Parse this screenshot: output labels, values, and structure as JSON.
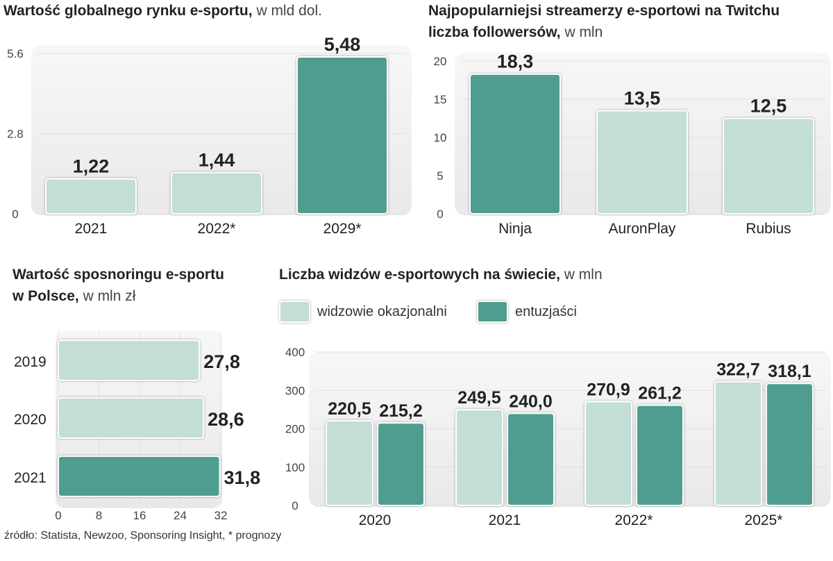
{
  "colors": {
    "light": "#c3ddd7",
    "dark": "#4f9d90",
    "panel": "#efefef"
  },
  "chart_data": [
    {
      "type": "bar",
      "title": "Wartość globalnego rynku e-sportu,",
      "unit": "w mld dol.",
      "categories": [
        "2021",
        "2022*",
        "2029*"
      ],
      "values": [
        1.22,
        1.44,
        5.48
      ],
      "value_labels": [
        "1,22",
        "1,44",
        "5,48"
      ],
      "highlight": [
        false,
        false,
        true
      ],
      "yticks": [
        "0",
        "2.8",
        "5.6"
      ],
      "ylim": [
        0,
        5.6
      ]
    },
    {
      "type": "bar",
      "title": "Najpopularniejsi streamerzy e-sportowi na Twitchu",
      "title2": "liczba followersów,",
      "unit": "w mln",
      "categories": [
        "Ninja",
        "AuronPlay",
        "Rubius"
      ],
      "values": [
        18.3,
        13.5,
        12.5
      ],
      "value_labels": [
        "18,3",
        "13,5",
        "12,5"
      ],
      "highlight": [
        true,
        false,
        false
      ],
      "yticks": [
        "0",
        "5",
        "10",
        "15",
        "20"
      ],
      "ylim": [
        0,
        20
      ]
    },
    {
      "type": "bar",
      "orientation": "horizontal",
      "title": "Wartość sposnoringu e-sportu",
      "title2": "w Polsce,",
      "unit": "w mln zł",
      "categories": [
        "2019",
        "2020",
        "2021"
      ],
      "values": [
        27.8,
        28.6,
        31.8
      ],
      "value_labels": [
        "27,8",
        "28,6",
        "31,8"
      ],
      "highlight": [
        false,
        false,
        true
      ],
      "xticks": [
        "0",
        "8",
        "16",
        "24",
        "32"
      ],
      "xlim": [
        0,
        32
      ]
    },
    {
      "type": "bar",
      "title": "Liczba widzów e-sportowych na świecie,",
      "unit": "w mln",
      "categories": [
        "2020",
        "2021",
        "2022*",
        "2025*"
      ],
      "series": [
        {
          "name": "widzowie okazjonalni",
          "values": [
            220.5,
            249.5,
            270.9,
            322.7
          ],
          "value_labels": [
            "220,5",
            "249,5",
            "270,9",
            "322,7"
          ]
        },
        {
          "name": "entuzjaści",
          "values": [
            215.2,
            240.0,
            261.2,
            318.1
          ],
          "value_labels": [
            "215,2",
            "240,0",
            "261,2",
            "318,1"
          ]
        }
      ],
      "yticks": [
        "0",
        "100",
        "200",
        "300",
        "400"
      ],
      "ylim": [
        0,
        400
      ],
      "legend": "top-left"
    }
  ],
  "footnote": "źródło: Statista, Newzoo, Sponsoring Insight, * prognozy"
}
